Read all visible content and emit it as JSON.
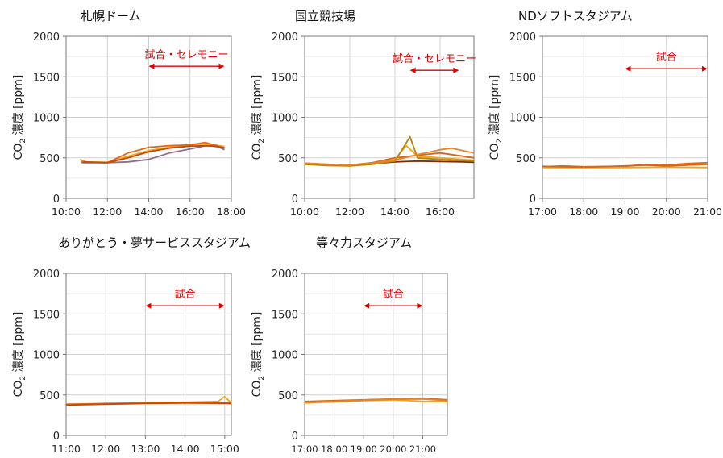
{
  "y_axis_label_main": "CO",
  "y_axis_label_sub": "2",
  "y_axis_label_rest": " 濃度 [ppm]",
  "chart_data": [
    {
      "type": "line",
      "title": "札幌ドーム",
      "ylabel": "CO2 濃度 [ppm]",
      "xlim": [
        "10:00",
        "18:00"
      ],
      "ylim": [
        0,
        2000
      ],
      "yticks": [
        0,
        500,
        1000,
        1500,
        2000
      ],
      "xticks": [
        "10:00",
        "12:00",
        "14:00",
        "16:00",
        "18:00"
      ],
      "annotation": {
        "text": "試合・セレモニー",
        "from": "14:00",
        "to": "17:40",
        "y": 1630
      },
      "grid": true,
      "series": [
        {
          "color": "#f2a51c",
          "points": [
            [
              "10:40",
              480
            ],
            [
              "11:00",
              450
            ],
            [
              "12:00",
              445
            ],
            [
              "13:00",
              520
            ],
            [
              "14:00",
              590
            ],
            [
              "15:00",
              630
            ],
            [
              "16:00",
              665
            ],
            [
              "17:00",
              670
            ],
            [
              "17:40",
              640
            ]
          ]
        },
        {
          "color": "#e46a14",
          "points": [
            [
              "10:45",
              455
            ],
            [
              "11:00",
              445
            ],
            [
              "12:00",
              440
            ],
            [
              "13:00",
              560
            ],
            [
              "14:00",
              630
            ],
            [
              "15:00",
              650
            ],
            [
              "16:00",
              660
            ],
            [
              "16:45",
              690
            ],
            [
              "17:40",
              620
            ]
          ]
        },
        {
          "color": "#8c6d8c",
          "points": [
            [
              "10:45",
              440
            ],
            [
              "12:00",
              440
            ],
            [
              "13:00",
              450
            ],
            [
              "14:00",
              480
            ],
            [
              "15:00",
              560
            ],
            [
              "16:00",
              610
            ],
            [
              "16:45",
              650
            ],
            [
              "17:20",
              640
            ],
            [
              "17:40",
              600
            ]
          ]
        },
        {
          "color": "#c44a0c",
          "points": [
            [
              "10:50",
              450
            ],
            [
              "12:00",
              440
            ],
            [
              "13:00",
              500
            ],
            [
              "14:00",
              575
            ],
            [
              "15:00",
              620
            ],
            [
              "16:00",
              645
            ],
            [
              "17:00",
              650
            ],
            [
              "17:40",
              625
            ]
          ]
        }
      ]
    },
    {
      "type": "line",
      "title": "国立競技場",
      "ylabel": "CO2 濃度 [ppm]",
      "xlim": [
        "10:00",
        "17:30"
      ],
      "ylim": [
        0,
        2000
      ],
      "yticks": [
        0,
        500,
        1000,
        1500,
        2000
      ],
      "xticks": [
        "10:00",
        "12:00",
        "14:00",
        "16:00"
      ],
      "annotation": {
        "text": "試合・セレモニー",
        "from": "14:40",
        "to": "16:50",
        "y": 1580
      },
      "grid": true,
      "series": [
        {
          "color": "#7a2e0c",
          "points": [
            [
              "10:00",
              420
            ],
            [
              "11:00",
              415
            ],
            [
              "12:00",
              405
            ],
            [
              "13:00",
              425
            ],
            [
              "14:00",
              450
            ],
            [
              "15:00",
              460
            ],
            [
              "16:00",
              455
            ],
            [
              "17:00",
              450
            ],
            [
              "17:30",
              445
            ]
          ]
        },
        {
          "color": "#d6661a",
          "points": [
            [
              "10:00",
              430
            ],
            [
              "11:00",
              420
            ],
            [
              "12:00",
              410
            ],
            [
              "13:00",
              440
            ],
            [
              "14:00",
              500
            ],
            [
              "15:00",
              530
            ],
            [
              "16:00",
              560
            ],
            [
              "17:00",
              520
            ],
            [
              "17:30",
              500
            ]
          ]
        },
        {
          "color": "#f2a51c",
          "points": [
            [
              "10:00",
              425
            ],
            [
              "11:00",
              410
            ],
            [
              "12:00",
              400
            ],
            [
              "13:00",
              430
            ],
            [
              "14:00",
              480
            ],
            [
              "14:30",
              650
            ],
            [
              "15:00",
              520
            ],
            [
              "16:00",
              500
            ],
            [
              "17:30",
              470
            ]
          ]
        },
        {
          "color": "#b5850e",
          "points": [
            [
              "10:00",
              420
            ],
            [
              "11:00",
              405
            ],
            [
              "12:00",
              400
            ],
            [
              "13:00",
              420
            ],
            [
              "14:00",
              460
            ],
            [
              "14:40",
              760
            ],
            [
              "15:00",
              500
            ],
            [
              "16:00",
              480
            ],
            [
              "17:30",
              460
            ]
          ]
        },
        {
          "color": "#e8832a",
          "points": [
            [
              "10:00",
              435
            ],
            [
              "11:00",
              420
            ],
            [
              "12:00",
              410
            ],
            [
              "13:00",
              435
            ],
            [
              "14:00",
              470
            ],
            [
              "15:00",
              540
            ],
            [
              "16:00",
              600
            ],
            [
              "16:30",
              620
            ],
            [
              "17:30",
              560
            ]
          ]
        }
      ]
    },
    {
      "type": "line",
      "title": "NDソフトスタジアム",
      "ylabel": "CO2 濃度 [ppm]",
      "xlim": [
        "17:00",
        "21:00"
      ],
      "ylim": [
        0,
        2000
      ],
      "yticks": [
        0,
        500,
        1000,
        1500,
        2000
      ],
      "xticks": [
        "17:00",
        "18:00",
        "19:00",
        "20:00",
        "21:00"
      ],
      "annotation": {
        "text": "試合",
        "from": "19:00",
        "to": "21:00",
        "y": 1600
      },
      "grid": true,
      "series": [
        {
          "color": "#e46a14",
          "points": [
            [
              "17:00",
              390
            ],
            [
              "17:30",
              400
            ],
            [
              "18:00",
              390
            ],
            [
              "19:00",
              395
            ],
            [
              "19:30",
              420
            ],
            [
              "20:00",
              410
            ],
            [
              "20:30",
              430
            ],
            [
              "21:00",
              440
            ]
          ]
        },
        {
          "color": "#f2a51c",
          "points": [
            [
              "17:00",
              380
            ],
            [
              "18:00",
              380
            ],
            [
              "19:00",
              380
            ],
            [
              "20:00",
              385
            ],
            [
              "21:00",
              380
            ]
          ]
        },
        {
          "color": "#d6661a",
          "points": [
            [
              "17:00",
              395
            ],
            [
              "18:00",
              385
            ],
            [
              "19:00",
              400
            ],
            [
              "19:30",
              410
            ],
            [
              "20:00",
              400
            ],
            [
              "20:30",
              410
            ],
            [
              "21:00",
              420
            ]
          ]
        }
      ]
    },
    {
      "type": "line",
      "title": "ありがとう・夢サービススタジアム",
      "ylabel": "CO2 濃度 [ppm]",
      "xlim": [
        "11:00",
        "15:10"
      ],
      "ylim": [
        0,
        2000
      ],
      "yticks": [
        0,
        500,
        1000,
        1500,
        2000
      ],
      "xticks": [
        "11:00",
        "12:00",
        "13:00",
        "14:00",
        "15:00"
      ],
      "annotation": {
        "text": "試合",
        "from": "13:00",
        "to": "15:00",
        "y": 1600
      },
      "grid": true,
      "series": [
        {
          "color": "#f2a51c",
          "points": [
            [
              "11:00",
              380
            ],
            [
              "12:00",
              390
            ],
            [
              "13:00",
              405
            ],
            [
              "14:00",
              410
            ],
            [
              "14:50",
              420
            ],
            [
              "15:00",
              480
            ],
            [
              "15:10",
              400
            ]
          ]
        },
        {
          "color": "#e46a14",
          "points": [
            [
              "11:00",
              385
            ],
            [
              "12:00",
              395
            ],
            [
              "13:00",
              400
            ],
            [
              "14:00",
              405
            ],
            [
              "15:10",
              400
            ]
          ]
        },
        {
          "color": "#c44a0c",
          "points": [
            [
              "11:00",
              375
            ],
            [
              "12:00",
              385
            ],
            [
              "13:00",
              395
            ],
            [
              "14:00",
              400
            ],
            [
              "15:10",
              395
            ]
          ]
        }
      ]
    },
    {
      "type": "line",
      "title": "等々力スタジアム",
      "ylabel": "CO2 濃度 [ppm]",
      "xlim": [
        "17:00",
        "21:50"
      ],
      "ylim": [
        0,
        2000
      ],
      "yticks": [
        0,
        500,
        1000,
        1500,
        2000
      ],
      "xticks": [
        "17:00",
        "18:00",
        "19:00",
        "20:00",
        "21:00"
      ],
      "annotation": {
        "text": "試合",
        "from": "19:00",
        "to": "21:00",
        "y": 1600
      },
      "grid": true,
      "series": [
        {
          "color": "#d6661a",
          "points": [
            [
              "17:00",
              420
            ],
            [
              "18:00",
              430
            ],
            [
              "19:00",
              440
            ],
            [
              "20:00",
              450
            ],
            [
              "21:00",
              460
            ],
            [
              "21:50",
              440
            ]
          ]
        },
        {
          "color": "#f2a51c",
          "points": [
            [
              "17:00",
              400
            ],
            [
              "18:00",
              415
            ],
            [
              "19:00",
              430
            ],
            [
              "20:00",
              440
            ],
            [
              "21:00",
              420
            ],
            [
              "21:50",
              420
            ]
          ]
        },
        {
          "color": "#e8832a",
          "points": [
            [
              "17:00",
              410
            ],
            [
              "18:00",
              420
            ],
            [
              "19:00",
              435
            ],
            [
              "20:00",
              445
            ],
            [
              "21:00",
              450
            ],
            [
              "21:50",
              430
            ]
          ]
        }
      ]
    }
  ]
}
